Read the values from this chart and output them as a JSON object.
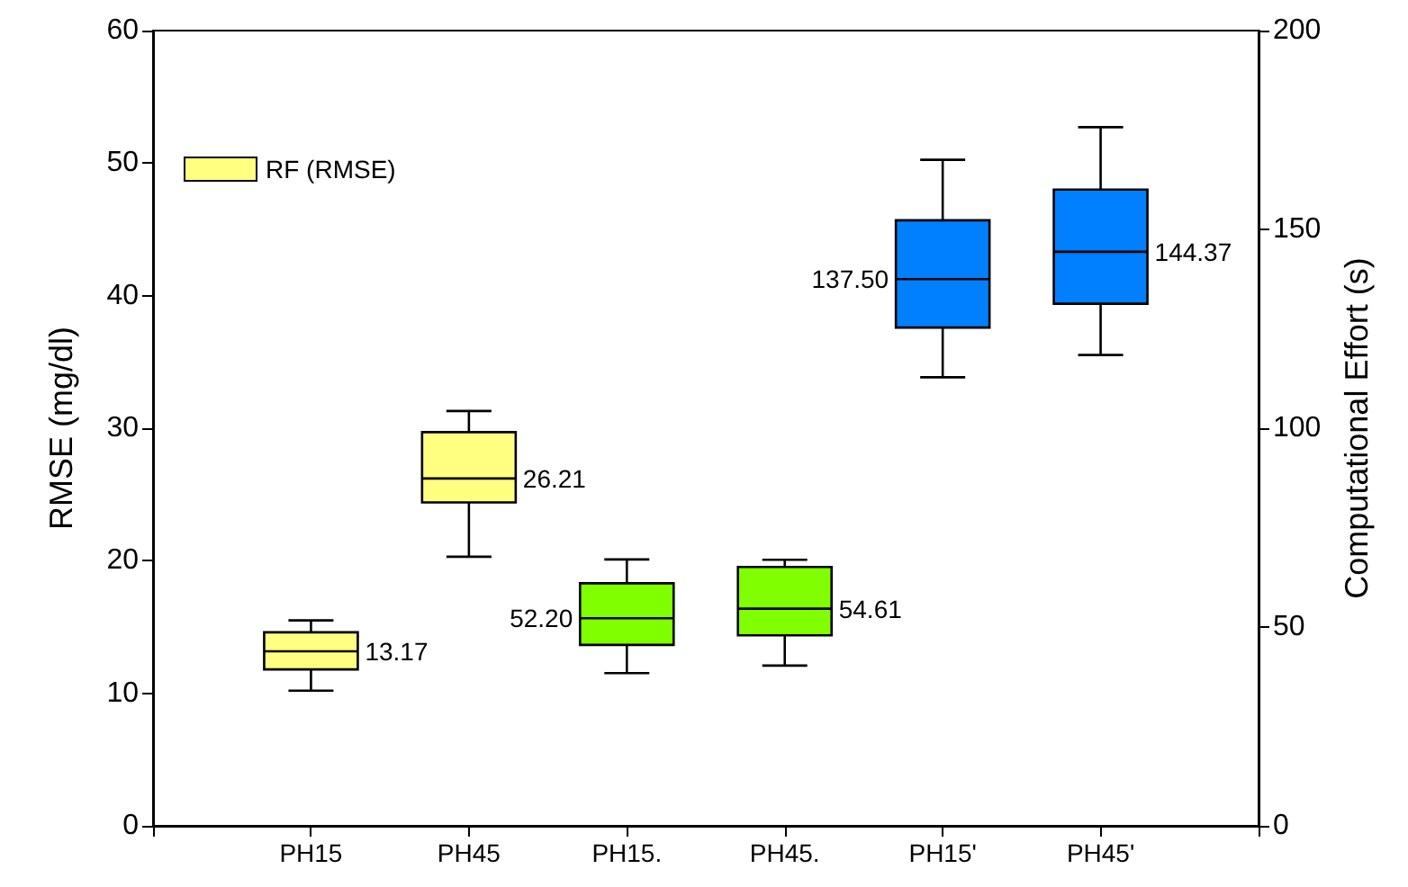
{
  "chart_data": {
    "type": "box",
    "ylabel": "RMSE (mg/dl)",
    "y2label": "Computational Effort (s)",
    "categories": [
      "PH15",
      "PH45",
      "PH15.",
      "PH45.",
      "PH15'",
      "PH45'"
    ],
    "ylim": [
      0,
      60
    ],
    "yticks": [
      0,
      10,
      20,
      30,
      40,
      50,
      60
    ],
    "y2lim": [
      0,
      200
    ],
    "y2ticks": [
      0,
      50,
      100,
      150,
      200
    ],
    "grid": false,
    "legend": "top left",
    "series": [
      {
        "name": "RF (RMSE)",
        "color": "#ffff80",
        "value_labels": [
          "13.17",
          "26.21",
          null,
          null,
          null,
          null
        ],
        "boxes": [
          {
            "low": 10.2,
            "q1": 11.8,
            "median": 13.17,
            "q3": 14.6,
            "high": 15.5
          },
          {
            "low": 20.3,
            "q1": 24.4,
            "median": 26.21,
            "q3": 29.7,
            "high": 31.3
          },
          null,
          null,
          null,
          null
        ]
      },
      {
        "axis": "y2",
        "color": "#80ff00",
        "value_labels": [
          null,
          null,
          "52.20",
          "54.61",
          null,
          null
        ],
        "boxes": [
          null,
          null,
          {
            "low": 38.4,
            "q1": 45.5,
            "median": 52.2,
            "q3": 61.0,
            "high": 67.0
          },
          {
            "low": 40.3,
            "q1": 47.9,
            "median": 54.61,
            "q3": 65.1,
            "high": 66.9
          },
          null,
          null
        ]
      },
      {
        "axis": "y2",
        "color": "#0080ff",
        "value_labels": [
          null,
          null,
          null,
          null,
          "137.50",
          "144.37"
        ],
        "boxes": [
          null,
          null,
          null,
          null,
          {
            "low": 112.8,
            "q1": 125.3,
            "median": 137.5,
            "q3": 152.3,
            "high": 167.5
          },
          {
            "low": 118.4,
            "q1": 131.3,
            "median": 144.37,
            "q3": 160.0,
            "high": 175.7
          }
        ]
      }
    ]
  }
}
